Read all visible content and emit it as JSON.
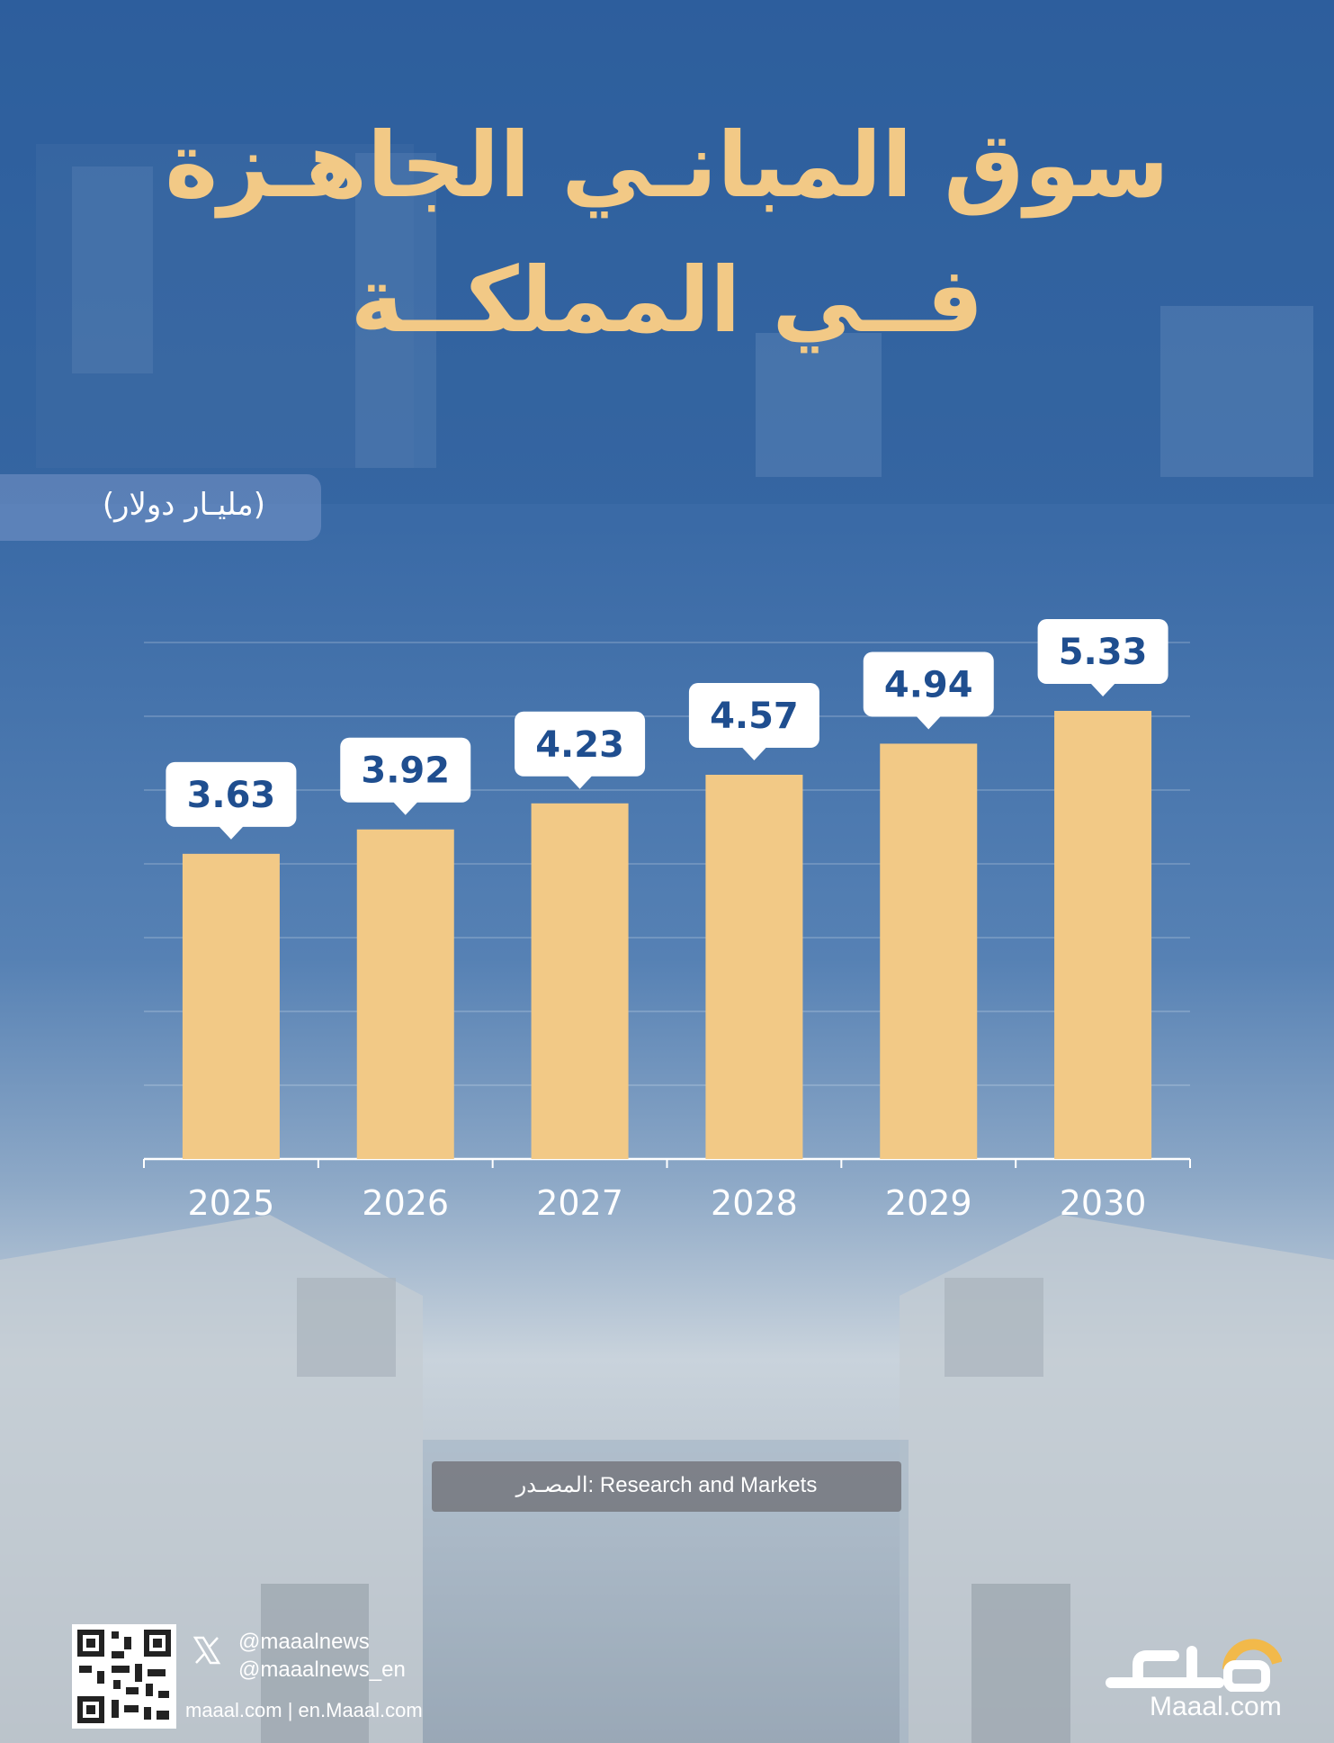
{
  "title_line1": "سوق المبانـي الجاهـزة",
  "title_line2": "فــي المملكــة",
  "unit_label": "(مليـار دولار)",
  "source_label": "المصـدر: Research and Markets",
  "footer": {
    "handle_1": "@maaalnews",
    "handle_2": "@maaalnews_en",
    "sites": "maaal.com | en.Maaal.com",
    "brand": "Maaal.com"
  },
  "colors": {
    "bar": "#f2c986",
    "label_text": "#1f4e8f",
    "title": "#f2c986"
  },
  "chart_data": {
    "type": "bar",
    "categories": [
      "2025",
      "2026",
      "2027",
      "2028",
      "2029",
      "2030"
    ],
    "values": [
      3.63,
      3.92,
      4.23,
      4.57,
      4.94,
      5.33
    ],
    "value_labels": [
      "3.63",
      "3.92",
      "4.23",
      "4.57",
      "4.94",
      "5.33"
    ],
    "ylabel": "(مليـار دولار)",
    "grid": true,
    "legend": "none"
  }
}
